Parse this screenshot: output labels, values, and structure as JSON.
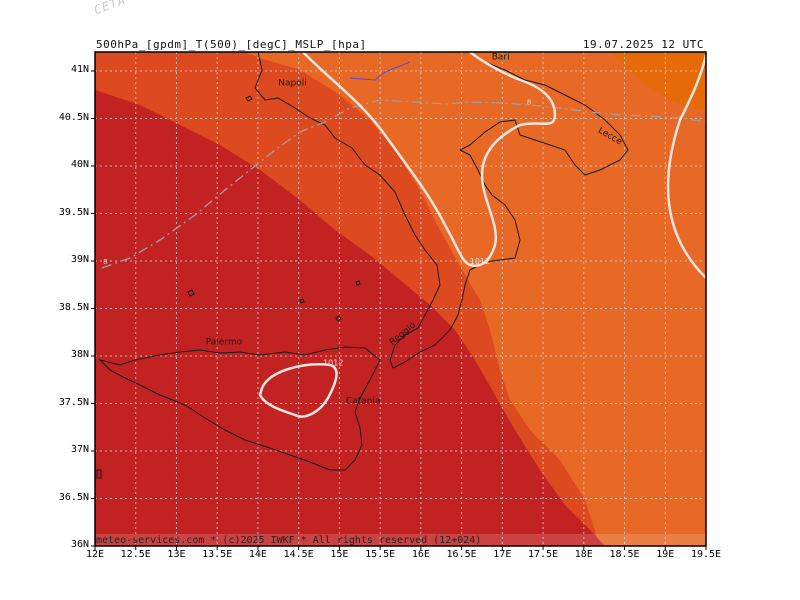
{
  "header": {
    "left": "500hPa_[gpdm]_T(500)_[degC]_MSLP_[hpa]",
    "right": "19.07.2025  12  UTC"
  },
  "watermark": "CETA - m",
  "footer": "meteo-services.com * (c)2025 IWKF * All rights reserved (12+024)",
  "map_data": {
    "type": "map",
    "lon_range": [
      12,
      19.5
    ],
    "lat_range": [
      36,
      41.2
    ],
    "x_ticks": [
      "12E",
      "12.5E",
      "13E",
      "13.5E",
      "14E",
      "14.5E",
      "15E",
      "15.5E",
      "16E",
      "16.5E",
      "17E",
      "17.5E",
      "18E",
      "18.5E",
      "19E",
      "19.5E"
    ],
    "y_ticks": [
      "41N",
      "40.5N",
      "40N",
      "39.5N",
      "39N",
      "38.5N",
      "38N",
      "37.5N",
      "37N",
      "36.5N",
      "36N"
    ],
    "grid": true,
    "colors": {
      "dark_red": "#c22222",
      "red_orange": "#dd4a20",
      "orange": "#e86825",
      "dark_orange": "#e66a08",
      "isobar": "#f2e4de",
      "coast": "#1a1a1a",
      "geopotential": "#a0a0a0"
    },
    "cities": [
      {
        "name": "Napoli",
        "lon": 14.25,
        "lat": 40.85
      },
      {
        "name": "Bari",
        "lon": 16.87,
        "lat": 41.12
      },
      {
        "name": "Lecce",
        "lon": 18.17,
        "lat": 40.36
      },
      {
        "name": "Palermo",
        "lon": 13.36,
        "lat": 38.12
      },
      {
        "name": "Reggio",
        "lon": 15.65,
        "lat": 38.11
      },
      {
        "name": "Catania",
        "lon": 15.08,
        "lat": 37.5
      }
    ],
    "isobar_labels": [
      {
        "text": "1012",
        "lon": 16.6,
        "lat": 38.97
      },
      {
        "text": "1012",
        "lon": 14.8,
        "lat": 37.9
      }
    ],
    "contour_labels": [
      {
        "text": "8",
        "lon": 17.3,
        "lat": 40.65
      },
      {
        "text": "8",
        "lon": 12.1,
        "lat": 38.97
      }
    ]
  }
}
